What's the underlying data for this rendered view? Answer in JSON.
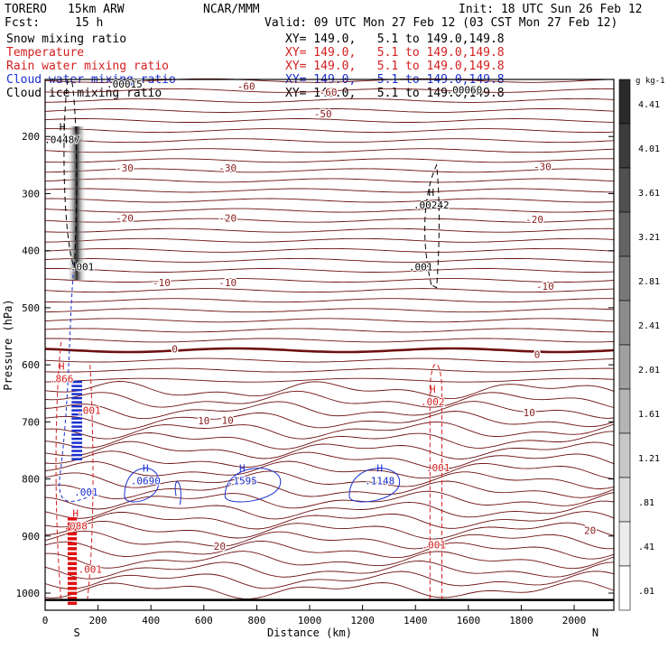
{
  "header": {
    "model": "TORERO",
    "resolution": "15km ARW",
    "org": "NCAR/MMM",
    "init": "Init: 18 UTC Sun 26 Feb 12",
    "fcst_label": "Fcst:",
    "fcst_value": "15 h",
    "valid": "Valid: 09 UTC Mon 27 Feb 12 (03 CST Mon 27 Feb 12)"
  },
  "fields": [
    {
      "name": "Snow mixing ratio",
      "xy": "XY= 149.0,   5.1 to 149.0,149.8",
      "color": "#000000"
    },
    {
      "name": "Temperature",
      "xy": "XY= 149.0,   5.1 to 149.0,149.8",
      "color": "#d42020"
    },
    {
      "name": "Rain water mixing ratio",
      "xy": "XY= 149.0,   5.1 to 149.0,149.8",
      "color": "#d42020"
    },
    {
      "name": "Cloud water mixing ratio",
      "xy": "XY= 149.0,   5.1 to 149.0,149.8",
      "color": "#1a2fd0"
    },
    {
      "name": "Cloud ice mixing ratio",
      "xy": "XY= 149.0,   5.1 to 149.0,149.8",
      "color": "#000000"
    }
  ],
  "chart_data": {
    "type": "contour",
    "xlabel": "Distance (km)",
    "ylabel": "Pressure (hPa)",
    "xlim": [
      0,
      2150
    ],
    "ylim": [
      1030,
      100
    ],
    "x_ticks": [
      0,
      200,
      400,
      600,
      800,
      1000,
      1200,
      1400,
      1600,
      1800,
      2000
    ],
    "y_ticks": [
      200,
      300,
      400,
      500,
      600,
      700,
      800,
      900,
      1000
    ],
    "x_end_labels": {
      "left": "S",
      "right": "N"
    },
    "colorbar": {
      "unit": "g kg-1",
      "labels": [
        "4.41",
        "4.01",
        "3.61",
        "3.21",
        "2.81",
        "2.41",
        "2.01",
        "1.61",
        "1.21",
        ".81",
        ".41",
        ".01"
      ],
      "colors": [
        "#2a2a2a",
        "#3c3c3c",
        "#505050",
        "#646464",
        "#787878",
        "#8c8c8c",
        "#a0a0a0",
        "#b4b4b4",
        "#c8c8c8",
        "#dcdcdc",
        "#ececec",
        "#ffffff"
      ]
    },
    "temperature_labels": [
      {
        "x": 1050,
        "p": 160,
        "v": "-50"
      },
      {
        "x": 1070,
        "p": 122,
        "v": "-60"
      },
      {
        "x": 760,
        "p": 112,
        "v": "-60"
      },
      {
        "x": 300,
        "p": 255,
        "v": "-30"
      },
      {
        "x": 690,
        "p": 255,
        "v": "-30"
      },
      {
        "x": 1880,
        "p": 253,
        "v": "-30"
      },
      {
        "x": 300,
        "p": 343,
        "v": "-20"
      },
      {
        "x": 690,
        "p": 343,
        "v": "-20"
      },
      {
        "x": 1850,
        "p": 345,
        "v": "-20"
      },
      {
        "x": 440,
        "p": 456,
        "v": "-10"
      },
      {
        "x": 690,
        "p": 456,
        "v": "-10"
      },
      {
        "x": 1890,
        "p": 462,
        "v": "-10"
      },
      {
        "x": 490,
        "p": 572,
        "v": "0"
      },
      {
        "x": 1860,
        "p": 582,
        "v": "0"
      },
      {
        "x": 600,
        "p": 698,
        "v": "10"
      },
      {
        "x": 690,
        "p": 697,
        "v": "10"
      },
      {
        "x": 1830,
        "p": 684,
        "v": "10"
      },
      {
        "x": 660,
        "p": 918,
        "v": "20"
      },
      {
        "x": 2060,
        "p": 890,
        "v": "20"
      }
    ],
    "maxima": [
      {
        "x": 65,
        "p": 205,
        "v": ".04487"
      },
      {
        "x": 1460,
        "p": 320,
        "v": ".00242"
      },
      {
        "x": 1465,
        "p": 665,
        "v": ".002"
      },
      {
        "x": 380,
        "p": 803,
        "v": ".0690"
      },
      {
        "x": 745,
        "p": 803,
        "v": ".1595"
      },
      {
        "x": 1265,
        "p": 803,
        "v": ".1148"
      },
      {
        "x": 62,
        "p": 624,
        "v": ".866"
      },
      {
        "x": 115,
        "p": 882,
        "v": ".088"
      }
    ],
    "contour_values": [
      {
        "x": 140,
        "p": 428,
        "v": ".001",
        "color": "#000000"
      },
      {
        "x": 1420,
        "p": 428,
        "v": ".001",
        "color": "#000000"
      },
      {
        "x": 165,
        "p": 680,
        "v": ".001",
        "color": "#d42020"
      },
      {
        "x": 155,
        "p": 823,
        "v": ".001",
        "color": "#1a2fd0"
      },
      {
        "x": 1485,
        "p": 780,
        "v": ".001",
        "color": "#d42020"
      },
      {
        "x": 1470,
        "p": 915,
        "v": ".001",
        "color": "#d42020"
      },
      {
        "x": 170,
        "p": 958,
        "v": ".001",
        "color": "#d42020"
      },
      {
        "x": 300,
        "p": 108,
        "v": ".00015",
        "color": "#000000"
      },
      {
        "x": 1585,
        "p": 118,
        "v": ".00060",
        "color": "#000000"
      }
    ]
  }
}
